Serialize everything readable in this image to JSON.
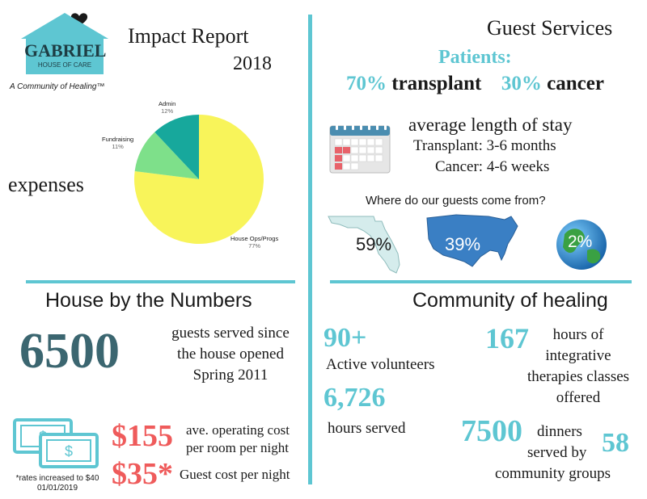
{
  "logo": {
    "name": "GABRIEL",
    "sub": "HOUSE OF CARE",
    "tagline": "A Community of Healing™"
  },
  "header": {
    "title": "Impact Report",
    "year": "2018"
  },
  "expenses": {
    "label": "expenses",
    "chart_data": {
      "type": "pie",
      "slices": [
        {
          "name": "House Ops/Progs",
          "value": 77,
          "label": "77%",
          "color": "#f8f45a"
        },
        {
          "name": "Fundraising",
          "value": 11,
          "label": "11%",
          "color": "#7ee08a"
        },
        {
          "name": "Admin",
          "value": 12,
          "label": "12%",
          "color": "#17a89c"
        }
      ]
    }
  },
  "guest_services": {
    "title": "Guest Services",
    "patients_label": "Patients:",
    "transplant_pct": "70%",
    "transplant_word": "transplant",
    "cancer_pct": "30%",
    "cancer_word": "cancer",
    "stay_title": "average length of stay",
    "stay_transplant": "Transplant: 3-6 months",
    "stay_cancer": "Cancer: 4-6 weeks",
    "origin_question": "Where do our guests come from?",
    "origin_florida": "59%",
    "origin_usa": "39%",
    "origin_world": "2%"
  },
  "house_numbers": {
    "title": "House by the Numbers",
    "guests_count": "6500",
    "guests_line1": "guests served since",
    "guests_line2": "the house opened",
    "guests_line3": "Spring 2011",
    "op_cost": "$155",
    "op_cost_line1": "ave. operating cost",
    "op_cost_line2": "per room per night",
    "guest_cost": "$35*",
    "guest_cost_text": "Guest cost per night",
    "note_line1": "*rates increased to $40",
    "note_line2": "01/01/2019"
  },
  "community": {
    "title": "Community of healing",
    "volunteers_num": "90+",
    "volunteers_text": "Active volunteers",
    "hours_num": "6,726",
    "hours_text": "hours served",
    "classes_num": "167",
    "classes_line1": "hours of",
    "classes_line2": "integrative",
    "classes_line3": "therapies classes",
    "classes_line4": "offered",
    "dinners_num": "7500",
    "dinners_word": "dinners",
    "served_by": "served by",
    "groups_num": "58",
    "groups_text": "community groups"
  },
  "colors": {
    "teal": "#5ec6d2",
    "dark_teal": "#3b6670",
    "red": "#ef5b5b"
  }
}
